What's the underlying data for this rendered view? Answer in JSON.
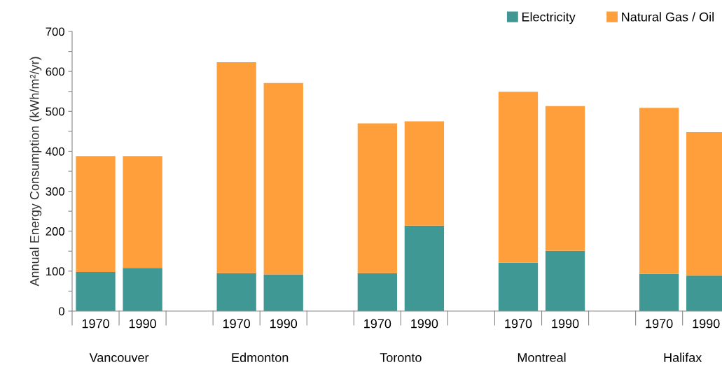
{
  "chart_data": {
    "type": "bar",
    "stacked": true,
    "ylabel": "Annual Energy Consumption (kWh/m²/yr)",
    "categories": [
      "1970",
      "1990",
      null,
      "1970",
      "1990",
      null,
      "1970",
      "1990",
      null,
      "1970",
      "1990",
      null,
      "1970",
      "1990"
    ],
    "series": [
      {
        "name": "Electricity",
        "color": "#3f9893",
        "values": [
          98,
          108,
          null,
          95,
          92,
          null,
          95,
          214,
          null,
          121,
          151,
          null,
          93,
          89
        ]
      },
      {
        "name": "Natural Gas / Oil",
        "color": "#ff9f3b",
        "values": [
          290,
          280,
          null,
          528,
          479,
          null,
          375,
          261,
          null,
          428,
          362,
          null,
          416,
          359
        ]
      }
    ],
    "annotations": [
      "Vancouver",
      "Edmonton",
      "Toronto",
      "Montreal",
      "Halifax"
    ],
    "ylim": [
      0,
      700
    ],
    "yticks": [
      0,
      {
        "value": 50,
        "label": null
      },
      100,
      {
        "value": 150,
        "label": null
      },
      200,
      {
        "value": 250,
        "label": null
      },
      300,
      {
        "value": 350,
        "label": null
      },
      400,
      {
        "value": 450,
        "label": null
      },
      500,
      {
        "value": 550,
        "label": null
      },
      600,
      {
        "value": 650,
        "label": null
      },
      700
    ],
    "grid": false,
    "legend": "top right"
  }
}
